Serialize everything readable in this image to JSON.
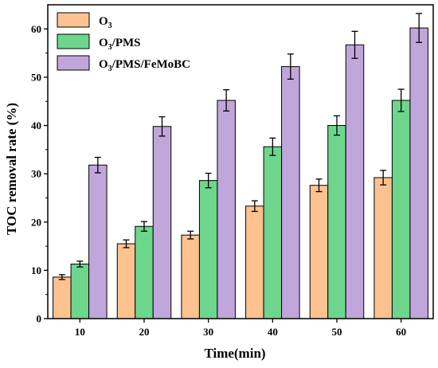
{
  "chart_data": {
    "type": "bar",
    "xlabel": "Time(min)",
    "ylabel": "TOC removal rate (%)",
    "categories": [
      "10",
      "20",
      "30",
      "40",
      "50",
      "60"
    ],
    "ylim": [
      0,
      65
    ],
    "yticks": [
      0,
      10,
      20,
      30,
      40,
      50,
      60
    ],
    "error_bars": true,
    "legend_position": "top-left",
    "series": [
      {
        "name": "O3",
        "color": "#fdc28f",
        "values": [
          8.6,
          15.5,
          17.3,
          23.3,
          27.6,
          29.2
        ],
        "errors": [
          0.5,
          0.8,
          0.8,
          1.1,
          1.3,
          1.5
        ]
      },
      {
        "name": "O3/PMS",
        "color": "#6ed58c",
        "values": [
          11.3,
          19.1,
          28.6,
          35.6,
          40.0,
          45.2
        ],
        "errors": [
          0.6,
          1.0,
          1.5,
          1.8,
          2.0,
          2.3
        ]
      },
      {
        "name": "O3/PMS/FeMoBC",
        "color": "#c1a6dc",
        "values": [
          31.8,
          39.8,
          45.2,
          52.2,
          56.7,
          60.2
        ],
        "errors": [
          1.6,
          2.0,
          2.2,
          2.6,
          2.8,
          3.0
        ]
      }
    ]
  }
}
